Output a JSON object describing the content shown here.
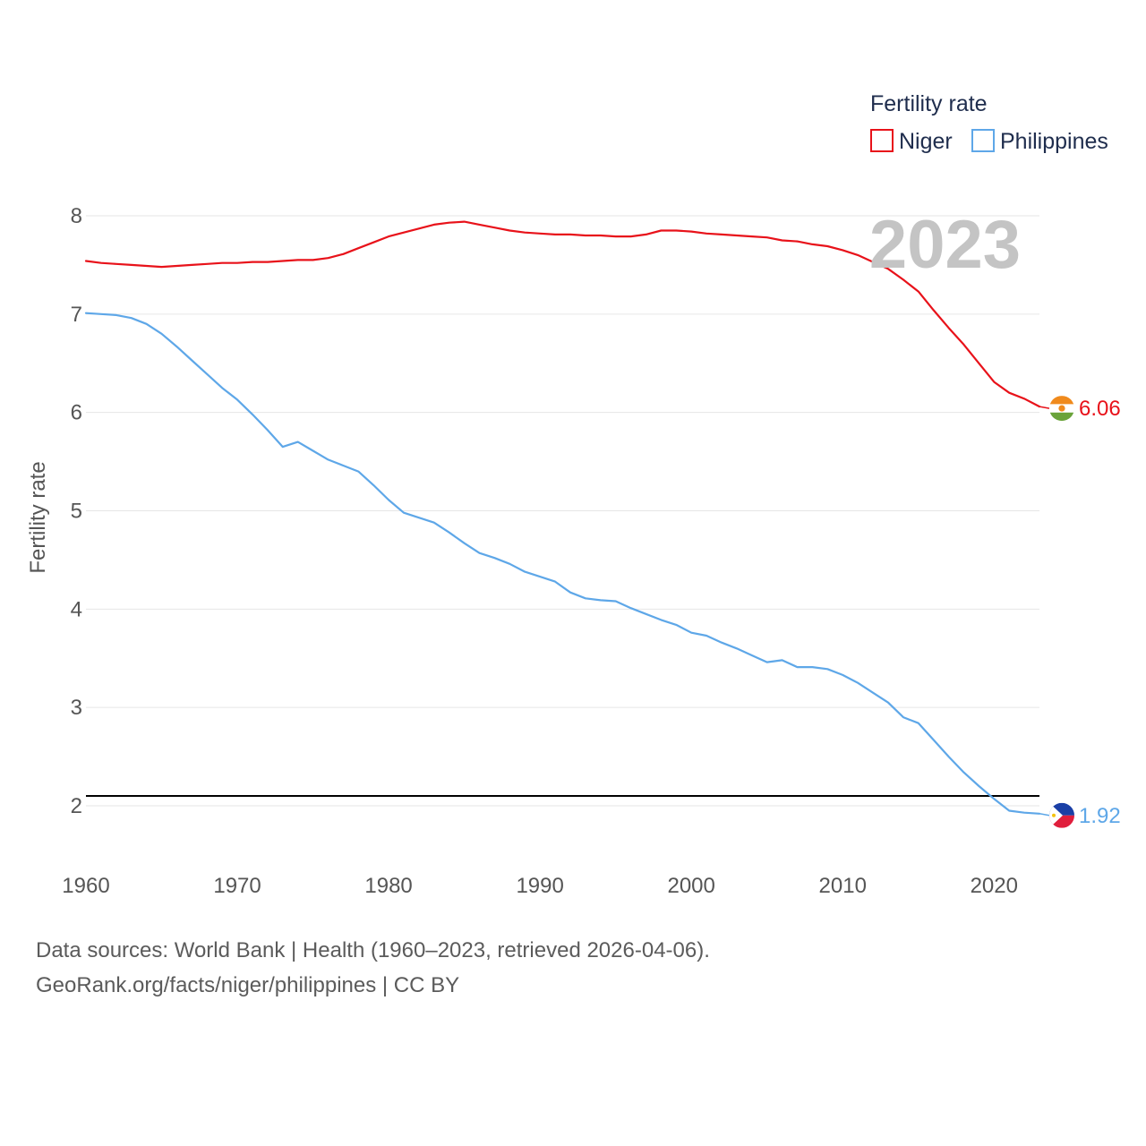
{
  "chart_data": {
    "type": "line",
    "ylabel": "Fertility rate",
    "xlabel": "",
    "legend_title": "Fertility rate",
    "legend_position": "top-right",
    "current_year_label": "2023",
    "x_ticks": [
      "1960",
      "1970",
      "1980",
      "1990",
      "2000",
      "2010",
      "2020"
    ],
    "y_ticks": [
      "2",
      "3",
      "4",
      "5",
      "6",
      "7",
      "8"
    ],
    "xlim": [
      1960,
      2023
    ],
    "ylim": [
      1.1,
      8.1
    ],
    "grid": true,
    "reference_line": {
      "value": 2.1,
      "color": "#000000"
    },
    "x": [
      1960,
      1961,
      1962,
      1963,
      1964,
      1965,
      1966,
      1967,
      1968,
      1969,
      1970,
      1971,
      1972,
      1973,
      1974,
      1975,
      1976,
      1977,
      1978,
      1979,
      1980,
      1981,
      1982,
      1983,
      1984,
      1985,
      1986,
      1987,
      1988,
      1989,
      1990,
      1991,
      1992,
      1993,
      1994,
      1995,
      1996,
      1997,
      1998,
      1999,
      2000,
      2001,
      2002,
      2003,
      2004,
      2005,
      2006,
      2007,
      2008,
      2009,
      2010,
      2011,
      2012,
      2013,
      2014,
      2015,
      2016,
      2017,
      2018,
      2019,
      2020,
      2021,
      2022,
      2023
    ],
    "series": [
      {
        "name": "Niger",
        "color": "#e8121a",
        "end_label": "6.06",
        "flag": "niger-flag",
        "values": [
          7.54,
          7.52,
          7.51,
          7.5,
          7.49,
          7.48,
          7.49,
          7.5,
          7.51,
          7.52,
          7.52,
          7.53,
          7.53,
          7.54,
          7.55,
          7.55,
          7.57,
          7.61,
          7.67,
          7.73,
          7.79,
          7.83,
          7.87,
          7.91,
          7.93,
          7.94,
          7.91,
          7.88,
          7.85,
          7.83,
          7.82,
          7.81,
          7.81,
          7.8,
          7.8,
          7.79,
          7.79,
          7.81,
          7.85,
          7.85,
          7.84,
          7.82,
          7.81,
          7.8,
          7.79,
          7.78,
          7.75,
          7.74,
          7.71,
          7.69,
          7.65,
          7.6,
          7.53,
          7.46,
          7.35,
          7.23,
          7.04,
          6.86,
          6.69,
          6.5,
          6.31,
          6.2,
          6.14,
          6.06
        ]
      },
      {
        "name": "Philippines",
        "color": "#5ea7e8",
        "end_label": "1.92",
        "flag": "philippines-flag",
        "values": [
          7.01,
          7.0,
          6.99,
          6.96,
          6.9,
          6.8,
          6.67,
          6.53,
          6.39,
          6.25,
          6.13,
          5.98,
          5.82,
          5.65,
          5.7,
          5.61,
          5.52,
          5.46,
          5.4,
          5.26,
          5.11,
          4.98,
          4.93,
          4.88,
          4.78,
          4.67,
          4.57,
          4.52,
          4.46,
          4.38,
          4.33,
          4.28,
          4.17,
          4.11,
          4.09,
          4.08,
          4.01,
          3.95,
          3.89,
          3.84,
          3.76,
          3.73,
          3.66,
          3.6,
          3.53,
          3.46,
          3.48,
          3.41,
          3.41,
          3.39,
          3.33,
          3.25,
          3.15,
          3.05,
          2.9,
          2.84,
          2.67,
          2.5,
          2.34,
          2.2,
          2.07,
          1.95,
          1.93,
          1.92
        ]
      }
    ]
  },
  "footer": {
    "line1": "Data sources: World Bank | Health (1960–2023, retrieved 2026-04-06).",
    "line2": "GeoRank.org/facts/niger/philippines | CC BY"
  }
}
